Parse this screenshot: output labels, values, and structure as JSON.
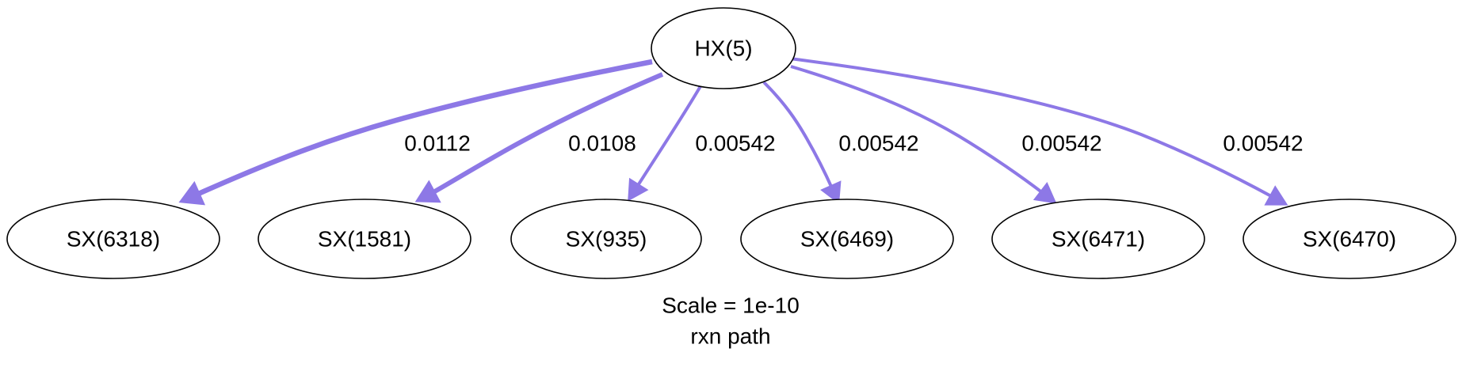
{
  "graph": {
    "edge_color": "#8d78e6",
    "root": {
      "id": "HX(5)",
      "label": "HX(5)"
    },
    "children": [
      {
        "id": "SX(6318)",
        "label": "SX(6318)",
        "flux": "0.0112"
      },
      {
        "id": "SX(1581)",
        "label": "SX(1581)",
        "flux": "0.0108"
      },
      {
        "id": "SX(935)",
        "label": "SX(935)",
        "flux": "0.00542"
      },
      {
        "id": "SX(6469)",
        "label": "SX(6469)",
        "flux": "0.00542"
      },
      {
        "id": "SX(6471)",
        "label": "SX(6471)",
        "flux": "0.00542"
      },
      {
        "id": "SX(6470)",
        "label": "SX(6470)",
        "flux": "0.00542"
      }
    ]
  },
  "caption": {
    "scale": "Scale = 1e-10",
    "title": "rxn path"
  }
}
